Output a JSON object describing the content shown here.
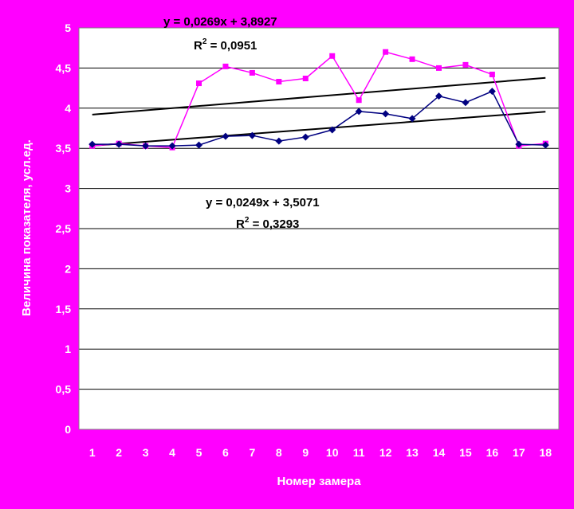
{
  "chart_data": {
    "type": "line",
    "xlabel": "Номер замера",
    "ylabel": "Величина показателя, усл.ед.",
    "ylim": [
      0,
      5
    ],
    "y_ticks": [
      "0",
      "0,5",
      "1",
      "1,5",
      "2",
      "2,5",
      "3",
      "3,5",
      "4",
      "4,5",
      "5"
    ],
    "x": [
      1,
      2,
      3,
      4,
      5,
      6,
      7,
      8,
      9,
      10,
      11,
      12,
      13,
      14,
      15,
      16,
      17,
      18
    ],
    "grid": true,
    "series": [
      {
        "color": "#FF00FF",
        "marker": "square",
        "values": [
          3.53,
          3.56,
          3.53,
          3.51,
          4.31,
          4.52,
          4.44,
          4.33,
          4.37,
          4.65,
          4.1,
          4.7,
          4.61,
          4.5,
          4.54,
          4.42,
          3.53,
          3.56
        ]
      },
      {
        "color": "#000080",
        "marker": "diamond",
        "values": [
          3.55,
          3.55,
          3.53,
          3.53,
          3.54,
          3.65,
          3.66,
          3.59,
          3.64,
          3.73,
          3.96,
          3.93,
          3.87,
          4.15,
          4.07,
          4.21,
          3.55,
          3.54
        ]
      }
    ],
    "trendlines": [
      {
        "slope": 0.0269,
        "intercept": 3.8927,
        "equation": "y = 0,0269x + 3,8927",
        "r2_label": "R",
        "r2_exp": "2",
        "r2_value": " = 0,0951"
      },
      {
        "slope": 0.0249,
        "intercept": 3.5071,
        "equation": "y = 0,0249x + 3,5071",
        "r2_label": "R",
        "r2_exp": "2",
        "r2_value": " = 0,3293"
      }
    ]
  }
}
